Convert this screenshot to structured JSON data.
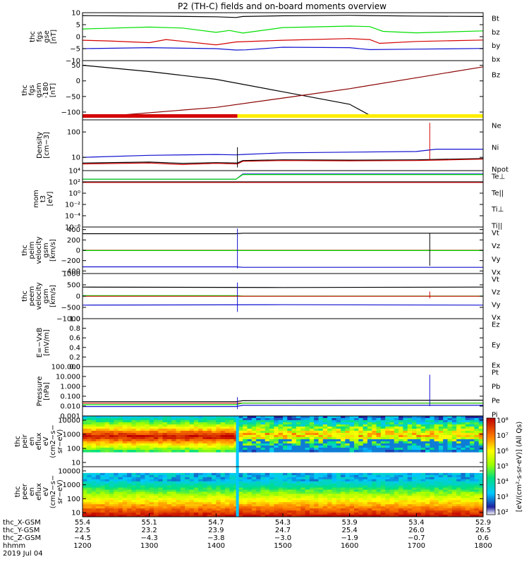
{
  "title": "P2 (TH-C) fields and on-board moments overview",
  "colors": {
    "black": "#000000",
    "red": "#d40000",
    "green": "#00e000",
    "blue": "#1010d0",
    "yellow": "#ffee00"
  },
  "chart_data": [
    {
      "type": "line",
      "ylabel_lines": [
        "thc",
        "fgs",
        "gse",
        "[nT]"
      ],
      "ylim": [
        -10,
        10
      ],
      "yticks": [
        {
          "v": 10,
          "label": "10"
        },
        {
          "v": 5,
          "label": "5"
        },
        {
          "v": 0,
          "label": "0"
        },
        {
          "v": -5,
          "label": "−5"
        },
        {
          "v": -10,
          "label": "−10"
        }
      ],
      "legend": [
        {
          "text": "Bt",
          "color": "#000000"
        },
        {
          "text": "bz",
          "color": "#d40000"
        },
        {
          "text": "by",
          "color": "#00e000"
        },
        {
          "text": "bx",
          "color": "#1010d0"
        }
      ],
      "series": [
        {
          "color": "#000000",
          "x": [
            1200,
            1300,
            1400,
            1430,
            1440,
            1500,
            1600,
            1630,
            1700,
            1800
          ],
          "y": [
            8.8,
            8.6,
            8.3,
            8.0,
            8.4,
            8.7,
            8.9,
            8.8,
            8.6,
            8.4
          ]
        },
        {
          "color": "#00e000",
          "x": [
            1200,
            1300,
            1350,
            1400,
            1420,
            1440,
            1500,
            1600,
            1630,
            1650,
            1700,
            1800
          ],
          "y": [
            3.2,
            4.0,
            3.6,
            1.8,
            2.6,
            1.5,
            3.8,
            4.4,
            4.2,
            2.2,
            1.6,
            2.4
          ]
        },
        {
          "color": "#d40000",
          "x": [
            1200,
            1240,
            1300,
            1325,
            1400,
            1430,
            1500,
            1600,
            1630,
            1645,
            1700,
            1800
          ],
          "y": [
            -1.5,
            -1.8,
            -2.5,
            -1.2,
            -3.4,
            -2.2,
            -1.5,
            -0.8,
            -1.2,
            -2.8,
            -2.0,
            -1.4
          ]
        },
        {
          "color": "#1010d0",
          "x": [
            1200,
            1300,
            1400,
            1430,
            1445,
            1500,
            1600,
            1630,
            1700,
            1800
          ],
          "y": [
            -5.0,
            -4.6,
            -5.0,
            -5.6,
            -5.5,
            -4.4,
            -4.6,
            -5.4,
            -5.2,
            -4.9
          ]
        }
      ]
    },
    {
      "type": "line",
      "ylabel_lines": [
        "thc",
        "fgs",
        "gsm",
        "-180",
        "[nT]"
      ],
      "ylim": [
        -125,
        65
      ],
      "yticks": [
        {
          "v": 50,
          "label": "50"
        },
        {
          "v": 0,
          "label": "0"
        },
        {
          "v": -50,
          "label": "−50"
        },
        {
          "v": -100,
          "label": "−100"
        }
      ],
      "legend": [
        {
          "text": "Bz",
          "color": "#8b0000"
        }
      ],
      "series": [
        {
          "color": "#000000",
          "x": [
            1200,
            1300,
            1400,
            1500,
            1600,
            1630,
            1800
          ],
          "y": [
            50,
            30,
            5,
            -35,
            -75,
            -110,
            -110
          ]
        },
        {
          "color": "#8b0000",
          "x": [
            1200,
            1255,
            1400,
            1500,
            1600,
            1700,
            1800
          ],
          "y": [
            -110,
            -110,
            -85,
            -55,
            -25,
            10,
            45
          ]
        }
      ],
      "bar": [
        {
          "x0": 1200,
          "x1": 1432,
          "color": "#d40000"
        },
        {
          "x0": 1432,
          "x1": 1800,
          "color": "#ffee00"
        }
      ]
    },
    {
      "type": "line",
      "log": true,
      "ylabel_lines": [
        "Density",
        "[cm−3]"
      ],
      "ylim": [
        3,
        300
      ],
      "yticks": [
        {
          "v": 100,
          "label": "100"
        },
        {
          "v": 10,
          "label": "10"
        }
      ],
      "legend": [
        {
          "text": "Ne",
          "color": "#d40000"
        },
        {
          "text": "Ni",
          "color": "#000000"
        },
        {
          "text": "Npot",
          "color": "#1010d0"
        }
      ],
      "series": [
        {
          "color": "#1010d0",
          "x": [
            1200,
            1300,
            1400,
            1430,
            1440,
            1500,
            1600,
            1700,
            1730,
            1800
          ],
          "y": [
            10,
            12,
            13,
            12.5,
            13,
            15,
            16,
            17,
            21,
            21
          ]
        },
        {
          "color": "#000000",
          "x": [
            1200,
            1300,
            1350,
            1400,
            1432,
            1440,
            1500,
            1600,
            1700,
            1800
          ],
          "y": [
            6,
            6.5,
            5.8,
            6.2,
            6,
            7.5,
            8,
            7.8,
            8,
            9
          ]
        },
        {
          "color": "#d40000",
          "x": [
            1200,
            1300,
            1350,
            1400,
            1432,
            1440,
            1500,
            1600,
            1700,
            1800
          ],
          "y": [
            5.5,
            6,
            5.2,
            5.8,
            5.5,
            7,
            7.5,
            7.3,
            7.5,
            8.5
          ]
        }
      ],
      "spikes": [
        {
          "x": 1432,
          "y0": 4,
          "y1": 25,
          "color": "#000000"
        },
        {
          "x": 1720,
          "y0": 8,
          "y1": 230,
          "color": "#d40000"
        }
      ]
    },
    {
      "type": "line",
      "log": true,
      "ylabel_lines": [
        "mom",
        "t3",
        "[eV]"
      ],
      "ylim": [
        1e-06,
        10000
      ],
      "yticks": [
        {
          "v": 10000,
          "label": "10⁴"
        },
        {
          "v": 100,
          "label": "10²"
        },
        {
          "v": 1,
          "label": "10⁰"
        },
        {
          "v": 0.01,
          "label": "10⁻²"
        },
        {
          "v": 0.0001,
          "label": "10⁻⁴"
        },
        {
          "v": 1e-06,
          "label": "10⁻⁶"
        }
      ],
      "legend": [
        {
          "text": "Te⊥",
          "color": "#d40000"
        },
        {
          "text": "Te||",
          "color": "#000000"
        },
        {
          "text": "Ti⊥",
          "color": "#00e000"
        },
        {
          "text": "Ti||",
          "color": "#00e000"
        }
      ],
      "series": [
        {
          "color": "#1010d0",
          "x": [
            1200,
            1430,
            1440,
            1800
          ],
          "y": [
            300,
            300,
            2500,
            2500
          ]
        },
        {
          "color": "#00e000",
          "x": [
            1200,
            1430,
            1440,
            1800
          ],
          "y": [
            300,
            300,
            2000,
            2000
          ]
        },
        {
          "color": "#000000",
          "x": [
            1200,
            1800
          ],
          "y": [
            100,
            100
          ]
        },
        {
          "color": "#d40000",
          "x": [
            1200,
            1800
          ],
          "y": [
            80,
            80
          ]
        }
      ]
    },
    {
      "type": "line",
      "ylabel_lines": [
        "thc",
        "peim",
        "velocity",
        "gsm",
        "[km/s]"
      ],
      "ylim": [
        -450,
        450
      ],
      "yticks": [
        {
          "v": 400,
          "label": "400"
        },
        {
          "v": 200,
          "label": "200"
        },
        {
          "v": 0,
          "label": "0"
        },
        {
          "v": -200,
          "label": "−200"
        },
        {
          "v": -400,
          "label": "−400"
        }
      ],
      "legend": [
        {
          "text": "Vt",
          "color": "#000000"
        },
        {
          "text": "Vz",
          "color": "#d40000"
        },
        {
          "text": "Vy",
          "color": "#00e000"
        },
        {
          "text": "Vx",
          "color": "#1010d0"
        }
      ],
      "series": [
        {
          "color": "#000000",
          "x": [
            1200,
            1430,
            1440,
            1800
          ],
          "y": [
            320,
            320,
            330,
            330
          ]
        },
        {
          "color": "#d40000",
          "x": [
            1200,
            1800
          ],
          "y": [
            0,
            0
          ]
        },
        {
          "color": "#00e000",
          "x": [
            1200,
            1800
          ],
          "y": [
            -5,
            -5
          ]
        },
        {
          "color": "#1010d0",
          "x": [
            1200,
            1430,
            1440,
            1800
          ],
          "y": [
            -320,
            -320,
            -330,
            -330
          ]
        }
      ],
      "spikes": [
        {
          "x": 1432,
          "y0": -350,
          "y1": 420,
          "color": "#1010d0"
        },
        {
          "x": 1720,
          "y0": -300,
          "y1": 330,
          "color": "#000000"
        }
      ]
    },
    {
      "type": "line",
      "ylabel_lines": [
        "thc",
        "peem",
        "velocity",
        "gsm",
        "[km/s]"
      ],
      "ylim": [
        -1000,
        1000
      ],
      "yticks": [
        {
          "v": 1000,
          "label": "1000"
        },
        {
          "v": 500,
          "label": "500"
        },
        {
          "v": 0,
          "label": "0"
        },
        {
          "v": -500,
          "label": "−500"
        },
        {
          "v": -1000,
          "label": "−1000"
        }
      ],
      "legend": [
        {
          "text": "Vt",
          "color": "#000000"
        },
        {
          "text": "Vz",
          "color": "#d40000"
        },
        {
          "text": "Vy",
          "color": "#00e000"
        },
        {
          "text": "Vx",
          "color": "#1010d0"
        }
      ],
      "series": [
        {
          "color": "#000000",
          "x": [
            1200,
            1500,
            1800
          ],
          "y": [
            400,
            380,
            400
          ]
        },
        {
          "color": "#00e000",
          "x": [
            1200,
            1430,
            1440,
            1800
          ],
          "y": [
            20,
            20,
            0,
            0
          ]
        },
        {
          "color": "#d40000",
          "x": [
            1200,
            1800
          ],
          "y": [
            -5,
            -5
          ]
        },
        {
          "color": "#1010d0",
          "x": [
            1200,
            1500,
            1800
          ],
          "y": [
            -400,
            -380,
            -400
          ]
        }
      ],
      "spikes": [
        {
          "x": 1432,
          "y0": -700,
          "y1": 600,
          "color": "#1010d0"
        },
        {
          "x": 1720,
          "y0": -100,
          "y1": 200,
          "color": "#d40000"
        }
      ]
    },
    {
      "type": "line",
      "ylabel_lines": [
        "E=−VxB",
        "[mV/m]"
      ],
      "ylim": [
        0,
        1
      ],
      "yticks": [
        {
          "v": 1.0,
          "label": "1.0"
        },
        {
          "v": 0.8,
          "label": "0.8"
        },
        {
          "v": 0.6,
          "label": "0.6"
        },
        {
          "v": 0.4,
          "label": "0.4"
        },
        {
          "v": 0.2,
          "label": "0.2"
        },
        {
          "v": 0.0,
          "label": "0.0"
        }
      ],
      "legend": [
        {
          "text": "Ez",
          "color": "#d40000"
        },
        {
          "text": "Ey",
          "color": "#00e000"
        },
        {
          "text": "Ex",
          "color": "#1010d0"
        }
      ],
      "series": []
    },
    {
      "type": "line",
      "log": true,
      "ylabel_lines": [
        "Pressure",
        "[nPa]"
      ],
      "ylim": [
        0.001,
        100
      ],
      "yticks": [
        {
          "v": 100,
          "label": "100.000"
        },
        {
          "v": 10,
          "label": "10.000"
        },
        {
          "v": 1,
          "label": "1.000"
        },
        {
          "v": 0.1,
          "label": "0.100"
        },
        {
          "v": 0.01,
          "label": "0.010"
        },
        {
          "v": 0.001,
          "label": "0.001"
        }
      ],
      "legend": [
        {
          "text": "Pt",
          "color": "#000000"
        },
        {
          "text": "Pb",
          "color": "#d40000"
        },
        {
          "text": "Pe",
          "color": "#00e000"
        },
        {
          "text": "Pi",
          "color": "#1010d0"
        }
      ],
      "series": [
        {
          "color": "#000000",
          "x": [
            1200,
            1430,
            1440,
            1800
          ],
          "y": [
            0.028,
            0.028,
            0.035,
            0.04
          ]
        },
        {
          "color": "#d40000",
          "x": [
            1200,
            1800
          ],
          "y": [
            0.02,
            0.02
          ]
        },
        {
          "color": "#00e000",
          "x": [
            1200,
            1430,
            1440,
            1800
          ],
          "y": [
            0.014,
            0.014,
            0.02,
            0.02
          ]
        },
        {
          "color": "#1010d0",
          "x": [
            1200,
            1430,
            1440,
            1800
          ],
          "y": [
            0.009,
            0.009,
            0.012,
            0.012
          ]
        }
      ],
      "spikes": [
        {
          "x": 1432,
          "y0": 0.005,
          "y1": 0.08,
          "color": "#1010d0"
        },
        {
          "x": 1720,
          "y0": 0.01,
          "y1": 15,
          "color": "#1010d0"
        }
      ]
    },
    {
      "type": "heatmap",
      "log": true,
      "ylabel_lines": [
        "thc",
        "peir",
        "en",
        "eflux",
        "eV",
        "(cm2−s−",
        "sr−eV)"
      ],
      "ylim": [
        5,
        20000
      ],
      "yticks": [
        {
          "v": 10000,
          "label": "10000"
        },
        {
          "v": 1000,
          "label": "1000"
        },
        {
          "v": 100,
          "label": "100"
        },
        {
          "v": 10,
          "label": "10"
        }
      ]
    },
    {
      "type": "heatmap",
      "log": true,
      "ylabel_lines": [
        "thc",
        "peer",
        "en",
        "eflux",
        "eV",
        "(cm2−s−",
        "sr−eV)"
      ],
      "ylim": [
        5,
        20000
      ],
      "yticks": [
        {
          "v": 10000,
          "label": "10000"
        },
        {
          "v": 1000,
          "label": "1000"
        },
        {
          "v": 100,
          "label": "100"
        },
        {
          "v": 10,
          "label": "10"
        }
      ]
    }
  ],
  "colorbar": {
    "ticks": [
      "10⁸",
      "10⁷",
      "10⁶",
      "10⁵",
      "10⁴",
      "10³",
      "10²"
    ],
    "label": "[eV/(cm²-s-sr-eV)] (All Qs)"
  },
  "xaxis": {
    "range": [
      1200,
      1800
    ],
    "tick_hhmm": [
      "1200",
      "1300",
      "1400",
      "1500",
      "1600",
      "1700",
      "1800"
    ],
    "ephemeris_rows": [
      {
        "name": "thc_X-GSM",
        "values": [
          "55.4",
          "55.1",
          "54.7",
          "54.3",
          "53.9",
          "53.4",
          "52.9"
        ]
      },
      {
        "name": "thc_Y-GSM",
        "values": [
          "22.5",
          "23.2",
          "23.9",
          "24.7",
          "25.4",
          "26.0",
          "26.5"
        ]
      },
      {
        "name": "thc_Z-GSM",
        "values": [
          "−4.5",
          "−4.3",
          "−3.8",
          "−3.0",
          "−1.9",
          "−0.7",
          "0.6"
        ]
      },
      {
        "name": "hhmm",
        "values": [
          "1200",
          "1300",
          "1400",
          "1500",
          "1600",
          "1700",
          "1800"
        ]
      }
    ],
    "date": "2019 Jul 04"
  }
}
